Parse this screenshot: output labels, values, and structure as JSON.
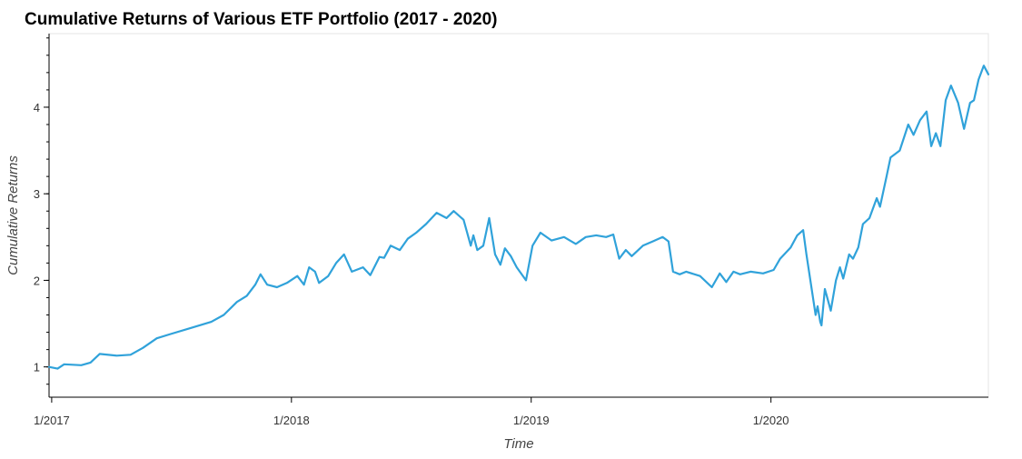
{
  "chart_data": {
    "type": "line",
    "title": "Cumulative Returns of Various ETF Portfolio (2017 - 2020)",
    "xlabel": "Time",
    "ylabel": "Cumulative Returns",
    "xlim": [
      "2016-12-28",
      "2020-11-27"
    ],
    "ylim": [
      0.65,
      4.85
    ],
    "x_ticks": [
      {
        "label": "1/2017",
        "date": "2017-01-01"
      },
      {
        "label": "1/2018",
        "date": "2018-01-01"
      },
      {
        "label": "1/2019",
        "date": "2019-01-01"
      },
      {
        "label": "1/2020",
        "date": "2020-01-01"
      }
    ],
    "y_ticks": [
      1,
      2,
      3,
      4
    ],
    "grid": false,
    "series": [
      {
        "color": "#30a2da",
        "x": [
          "2016-12-28",
          "2017-01-10",
          "2017-01-20",
          "2017-02-15",
          "2017-03-01",
          "2017-03-15",
          "2017-04-10",
          "2017-05-01",
          "2017-05-20",
          "2017-06-10",
          "2017-07-01",
          "2017-08-01",
          "2017-09-01",
          "2017-09-20",
          "2017-10-10",
          "2017-10-25",
          "2017-11-07",
          "2017-11-15",
          "2017-11-25",
          "2017-12-10",
          "2017-12-25",
          "2018-01-10",
          "2018-01-20",
          "2018-01-28",
          "2018-02-06",
          "2018-02-12",
          "2018-02-26",
          "2018-03-10",
          "2018-03-22",
          "2018-04-03",
          "2018-04-20",
          "2018-05-01",
          "2018-05-15",
          "2018-05-22",
          "2018-06-01",
          "2018-06-15",
          "2018-06-27",
          "2018-07-10",
          "2018-07-25",
          "2018-08-10",
          "2018-08-25",
          "2018-09-05",
          "2018-09-20",
          "2018-10-01",
          "2018-10-05",
          "2018-10-11",
          "2018-10-20",
          "2018-10-29",
          "2018-11-07",
          "2018-11-15",
          "2018-11-22",
          "2018-12-01",
          "2018-12-10",
          "2018-12-24",
          "2019-01-03",
          "2019-01-15",
          "2019-02-01",
          "2019-02-20",
          "2019-03-10",
          "2019-03-25",
          "2019-04-10",
          "2019-04-25",
          "2019-05-06",
          "2019-05-15",
          "2019-05-25",
          "2019-06-03",
          "2019-06-20",
          "2019-07-05",
          "2019-07-20",
          "2019-07-29",
          "2019-08-05",
          "2019-08-15",
          "2019-08-25",
          "2019-09-15",
          "2019-10-03",
          "2019-10-15",
          "2019-10-25",
          "2019-11-05",
          "2019-11-15",
          "2019-12-01",
          "2019-12-20",
          "2020-01-05",
          "2020-01-15",
          "2020-01-31",
          "2020-02-10",
          "2020-02-19",
          "2020-02-24",
          "2020-02-28",
          "2020-03-04",
          "2020-03-09",
          "2020-03-12",
          "2020-03-16",
          "2020-03-18",
          "2020-03-23",
          "2020-03-26",
          "2020-04-01",
          "2020-04-09",
          "2020-04-15",
          "2020-04-20",
          "2020-04-29",
          "2020-05-05",
          "2020-05-13",
          "2020-05-20",
          "2020-05-30",
          "2020-06-10",
          "2020-06-15",
          "2020-06-25",
          "2020-07-01",
          "2020-07-15",
          "2020-07-28",
          "2020-08-05",
          "2020-08-15",
          "2020-08-25",
          "2020-09-01",
          "2020-09-08",
          "2020-09-15",
          "2020-09-23",
          "2020-10-01",
          "2020-10-12",
          "2020-10-21",
          "2020-10-30",
          "2020-11-05",
          "2020-11-12",
          "2020-11-20",
          "2020-11-27"
        ],
        "y": [
          1.0,
          0.98,
          1.03,
          1.02,
          1.05,
          1.15,
          1.13,
          1.14,
          1.22,
          1.33,
          1.38,
          1.45,
          1.52,
          1.6,
          1.75,
          1.82,
          1.95,
          2.07,
          1.95,
          1.92,
          1.97,
          2.05,
          1.95,
          2.15,
          2.1,
          1.97,
          2.05,
          2.2,
          2.3,
          2.1,
          2.15,
          2.06,
          2.27,
          2.26,
          2.4,
          2.35,
          2.48,
          2.55,
          2.65,
          2.78,
          2.72,
          2.8,
          2.7,
          2.4,
          2.52,
          2.35,
          2.4,
          2.72,
          2.3,
          2.18,
          2.37,
          2.28,
          2.15,
          2.0,
          2.4,
          2.55,
          2.46,
          2.5,
          2.42,
          2.5,
          2.52,
          2.5,
          2.53,
          2.25,
          2.35,
          2.28,
          2.4,
          2.45,
          2.5,
          2.45,
          2.1,
          2.07,
          2.1,
          2.05,
          1.92,
          2.08,
          1.98,
          2.1,
          2.07,
          2.1,
          2.08,
          2.12,
          2.25,
          2.38,
          2.52,
          2.58,
          2.3,
          2.1,
          1.85,
          1.6,
          1.7,
          1.52,
          1.48,
          1.9,
          1.82,
          1.65,
          2.0,
          2.15,
          2.02,
          2.3,
          2.25,
          2.38,
          2.65,
          2.72,
          2.95,
          2.85,
          3.2,
          3.42,
          3.5,
          3.8,
          3.68,
          3.85,
          3.95,
          3.55,
          3.7,
          3.55,
          4.08,
          4.25,
          4.05,
          3.75,
          4.05,
          4.08,
          4.32,
          4.48,
          4.38
        ]
      }
    ]
  }
}
